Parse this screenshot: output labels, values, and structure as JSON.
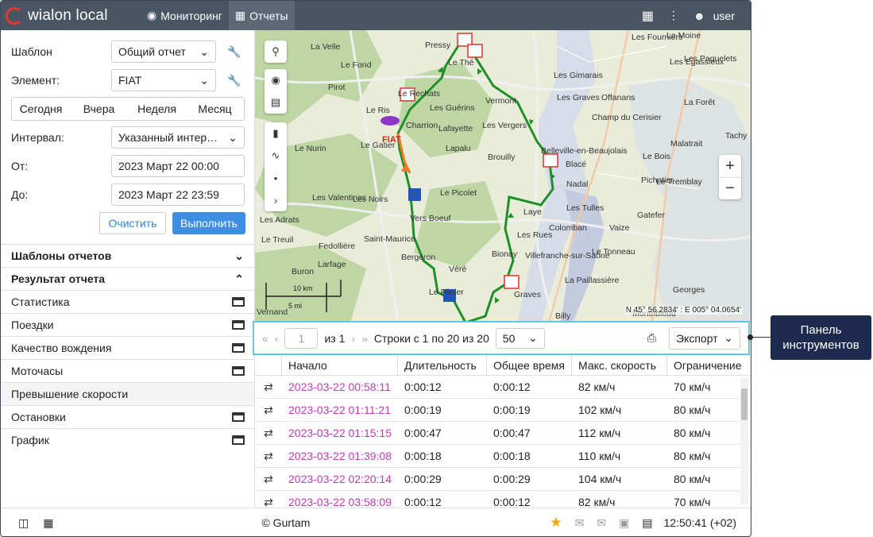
{
  "header": {
    "logo_text": "wialon local",
    "nav": [
      {
        "label": "Мониторинг",
        "icon": "globe-icon"
      },
      {
        "label": "Отчеты",
        "icon": "reports-icon",
        "active": true
      }
    ],
    "user": "user"
  },
  "form": {
    "template_label": "Шаблон",
    "template_value": "Общий отчет",
    "element_label": "Элемент:",
    "element_value": "FIAT",
    "periods": [
      "Сегодня",
      "Вчера",
      "Неделя",
      "Месяц"
    ],
    "interval_label": "Интервал:",
    "interval_value": "Указанный интер…",
    "from_label": "От:",
    "from_value": "2023 Март 22 00:00",
    "to_label": "До:",
    "to_value": "2023 Март 22 23:59",
    "clear_label": "Очистить",
    "run_label": "Выполнить"
  },
  "sections": {
    "templates": "Шаблоны отчетов",
    "result": "Результат отчета"
  },
  "result_items": [
    {
      "label": "Статистика",
      "icon": true
    },
    {
      "label": "Поездки",
      "icon": true
    },
    {
      "label": "Качество вождения",
      "icon": true
    },
    {
      "label": "Моточасы",
      "icon": true
    },
    {
      "label": "Превышение скорости",
      "icon": false,
      "selected": true
    },
    {
      "label": "Остановки",
      "icon": true
    },
    {
      "label": "График",
      "icon": true
    }
  ],
  "map": {
    "unit_label": "FIAT",
    "scale_km": "10 km",
    "scale_mi": "5 mi",
    "coords": "N 45° 56.2834' : E 005° 04.0654'",
    "places": [
      "La Velle",
      "Le Fond",
      "Les Fourniers",
      "Le Moine",
      "Les Paquelets",
      "Les Egassieux",
      "Les Gimarais",
      "Pressy",
      "Le Thé",
      "Le Rechats",
      "Le Ris",
      "Les Guérins",
      "Vermont",
      "Les Graves",
      "Offanans",
      "La Forêt",
      "Pirot",
      "Les Vergers",
      "Champ du Cerisier",
      "Malatrait",
      "Charrion",
      "Lafayette",
      "Tachy",
      "Le Gatier",
      "Le Nurin",
      "Lapalu",
      "Belleville-en-Beaujolais",
      "Le Bois",
      "Brouilly",
      "Blacé",
      "Pichatier",
      "Le Tremblay",
      "Nadal",
      "Le Picolet",
      "Les Valentines",
      "Les Noirs",
      "Les Tulles",
      "Gatefer",
      "Vers Boeuf",
      "Laye",
      "Colomban",
      "Vaize",
      "Les Adrats",
      "Le Treuil",
      "Saint-Maurice",
      "Les Rues",
      "Fedollière",
      "Villefranche-sur-Saône",
      "Le Tonneau",
      "Bergeron",
      "Bionay",
      "Larfage",
      "Véré",
      "La Paillassière",
      "Buron",
      "Le Plinier",
      "Graves",
      "Georges",
      "Vernand",
      "Billy",
      "Montribloud"
    ]
  },
  "toolbar": {
    "page": "1",
    "of_pages": "из 1",
    "rows_info": "Строки с 1 по 20 из 20",
    "page_size": "50",
    "export_label": "Экспорт"
  },
  "table": {
    "columns": [
      "Начало",
      "Длительность",
      "Общее время",
      "Макс. скорость",
      "Ограничение"
    ],
    "rows": [
      [
        "2023-03-22 00:58:11",
        "0:00:12",
        "0:00:12",
        "82 км/ч",
        "70 км/ч"
      ],
      [
        "2023-03-22 01:11:21",
        "0:00:19",
        "0:00:19",
        "102 км/ч",
        "80 км/ч"
      ],
      [
        "2023-03-22 01:15:15",
        "0:00:47",
        "0:00:47",
        "112 км/ч",
        "80 км/ч"
      ],
      [
        "2023-03-22 01:39:08",
        "0:00:18",
        "0:00:18",
        "110 км/ч",
        "80 км/ч"
      ],
      [
        "2023-03-22 02:20:14",
        "0:00:29",
        "0:00:29",
        "104 км/ч",
        "80 км/ч"
      ],
      [
        "2023-03-22 03:58:09",
        "0:00:12",
        "0:00:12",
        "82 км/ч",
        "70 км/ч"
      ]
    ]
  },
  "footer": {
    "copyright": "© Gurtam",
    "time": "12:50:41 (+02)"
  },
  "callout": {
    "text": "Панель инструментов"
  },
  "colors": {
    "topbar": "#4a5563",
    "run_button": "#3d8fe4",
    "link": "#c03ab8",
    "highlight": "#5ccae4",
    "callout": "#1d2b4f",
    "track": "#2e8b2e"
  }
}
